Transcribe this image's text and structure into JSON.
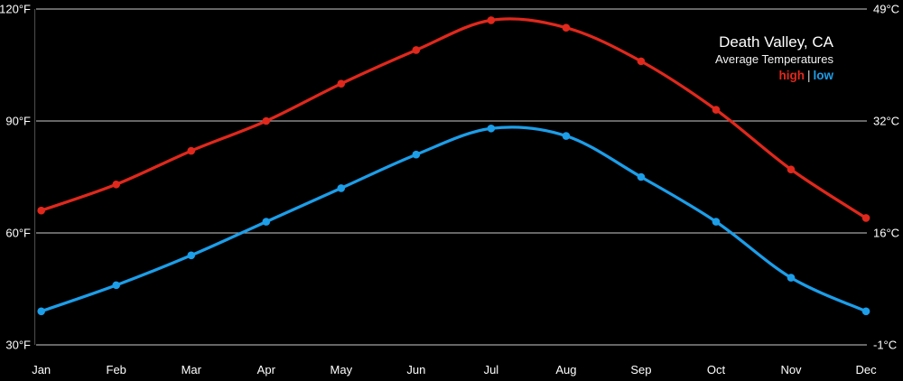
{
  "window": {
    "background": "#000000"
  },
  "chart_data": {
    "type": "line",
    "title": "Death Valley, CA",
    "subtitle": "Average Temperatures",
    "legend_separator": "|",
    "legend_position": "top-right",
    "categories": [
      "Jan",
      "Feb",
      "Mar",
      "Apr",
      "May",
      "Jun",
      "Jul",
      "Aug",
      "Sep",
      "Oct",
      "Nov",
      "Dec"
    ],
    "series": [
      {
        "name": "high",
        "color": "#e0281c",
        "unit": "°F",
        "values": [
          66,
          73,
          82,
          90,
          100,
          109,
          117,
          115,
          106,
          93,
          77,
          64
        ]
      },
      {
        "name": "low",
        "color": "#1c9ee9",
        "unit": "°F",
        "values": [
          39,
          46,
          54,
          63,
          72,
          81,
          88,
          86,
          75,
          63,
          48,
          39
        ]
      }
    ],
    "y_axis_left": {
      "unit": "°F",
      "tick_values": [
        120,
        90,
        60,
        30
      ],
      "tick_labels": [
        "120°F",
        "90°F",
        "60°F",
        "30°F"
      ]
    },
    "y_axis_right": {
      "unit": "°C",
      "tick_values": [
        49,
        32,
        16,
        -1
      ],
      "tick_labels": [
        "49°C",
        "32°C",
        "16°C",
        "-1°C"
      ]
    },
    "ylim": [
      30,
      120
    ],
    "grid": true,
    "marker": "circle"
  },
  "style": {
    "grid_color": "#a3a3a3",
    "axis_line_color": "#474747",
    "text_color": "#ffffff",
    "separator_color": "#d8d8d8"
  }
}
